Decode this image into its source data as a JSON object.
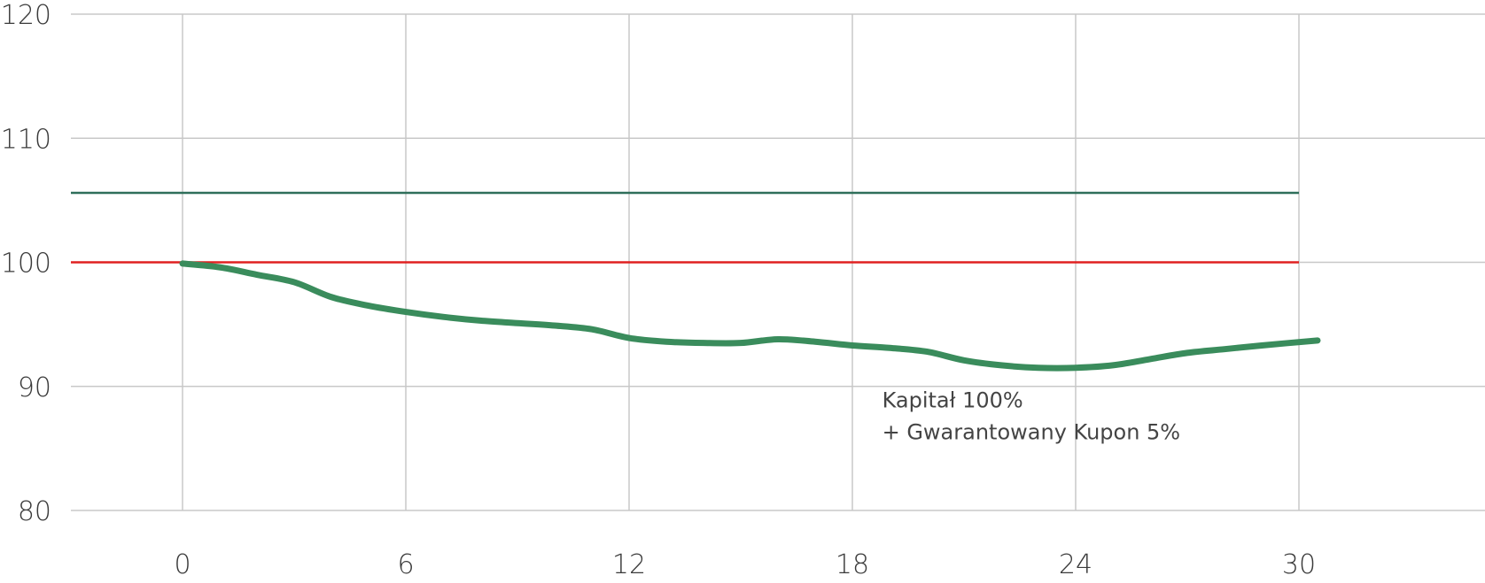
{
  "chart_data": {
    "type": "line",
    "title": "",
    "xlabel": "",
    "ylabel": "",
    "xlim": [
      -3,
      35
    ],
    "ylim": [
      80,
      120
    ],
    "x_ticks": [
      0,
      6,
      12,
      18,
      24,
      30
    ],
    "y_ticks": [
      80,
      90,
      100,
      110,
      120
    ],
    "x_tick_labels": [
      "0",
      "6",
      "12",
      "18",
      "24",
      "30"
    ],
    "y_tick_labels": [
      "80",
      "90",
      "100",
      "110",
      "120"
    ],
    "grid": true,
    "grid_color": "#c8c8c8",
    "reference_lines": [
      {
        "y": 105.6,
        "x_range": [
          -3,
          30
        ],
        "color": "#2f6f5a"
      },
      {
        "y": 100,
        "x_range": [
          -3,
          30
        ],
        "color": "#e02020"
      }
    ],
    "series": [
      {
        "color": "#3a8c5c",
        "x": [
          0,
          1,
          2,
          3,
          4,
          5,
          6,
          7,
          8,
          9,
          10,
          11,
          12,
          13,
          14,
          15,
          16,
          17,
          18,
          19,
          20,
          21,
          22,
          23,
          24,
          25,
          26,
          27,
          28,
          29,
          30.5
        ],
        "y": [
          99.9,
          99.6,
          99.0,
          98.4,
          97.2,
          96.5,
          96.0,
          95.6,
          95.3,
          95.1,
          94.9,
          94.6,
          93.9,
          93.6,
          93.5,
          93.5,
          93.8,
          93.6,
          93.3,
          93.1,
          92.8,
          92.1,
          91.7,
          91.5,
          91.5,
          91.7,
          92.2,
          92.7,
          93.0,
          93.3,
          93.7
        ]
      }
    ],
    "annotations": [
      {
        "lines": [
          "Kapitał 100%",
          "+ Gwarantowany Kupon 5%"
        ],
        "x": 18.8,
        "y": 88.3
      }
    ]
  }
}
